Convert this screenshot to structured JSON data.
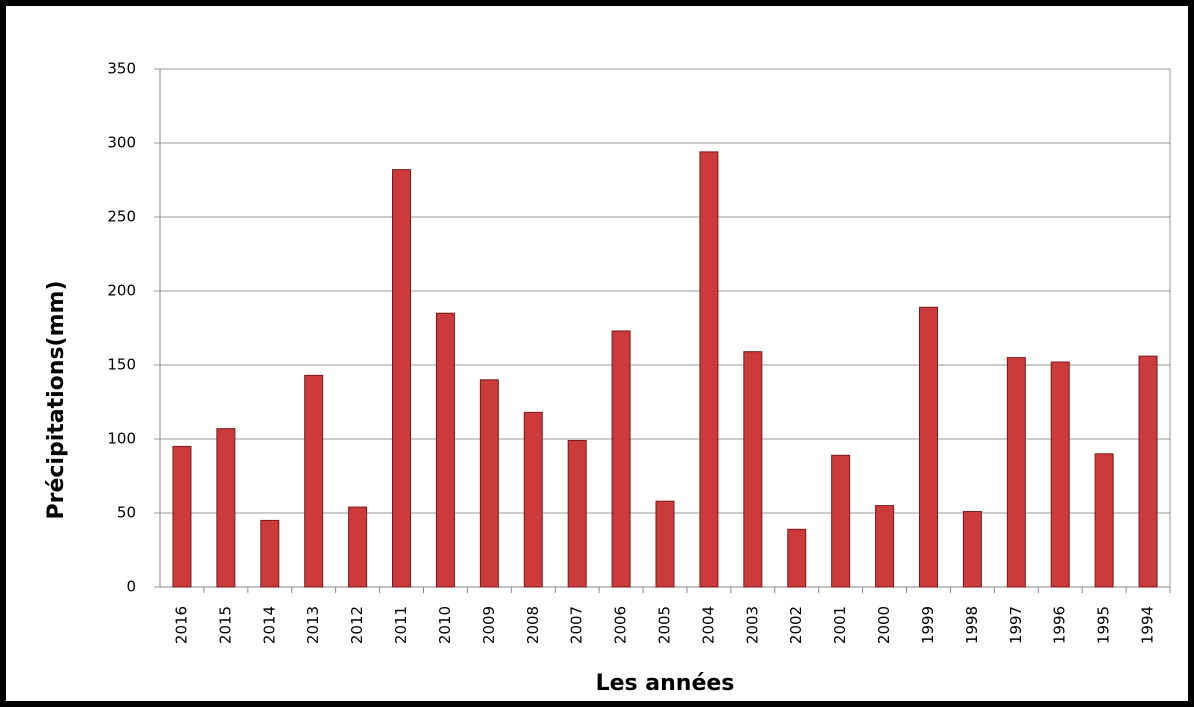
{
  "chart_data": {
    "type": "bar",
    "y_label": "Précipitations(mm)",
    "x_label": "Les années",
    "categories": [
      "2016",
      "2015",
      "2014",
      "2013",
      "2012",
      "2011",
      "2010",
      "2009",
      "2008",
      "2007",
      "2006",
      "2005",
      "2004",
      "2003",
      "2002",
      "2001",
      "2000",
      "1999",
      "1998",
      "1997",
      "1996",
      "1995",
      "1994"
    ],
    "values": [
      95,
      107,
      45,
      143,
      54,
      282,
      185,
      140,
      118,
      99,
      173,
      58,
      294,
      159,
      39,
      89,
      55,
      189,
      51,
      155,
      152,
      90,
      156
    ],
    "color": "#cc3b3b",
    "ylim": [
      0,
      350
    ],
    "yticks": [
      0,
      50,
      100,
      150,
      200,
      250,
      300,
      350
    ],
    "grid": true
  }
}
